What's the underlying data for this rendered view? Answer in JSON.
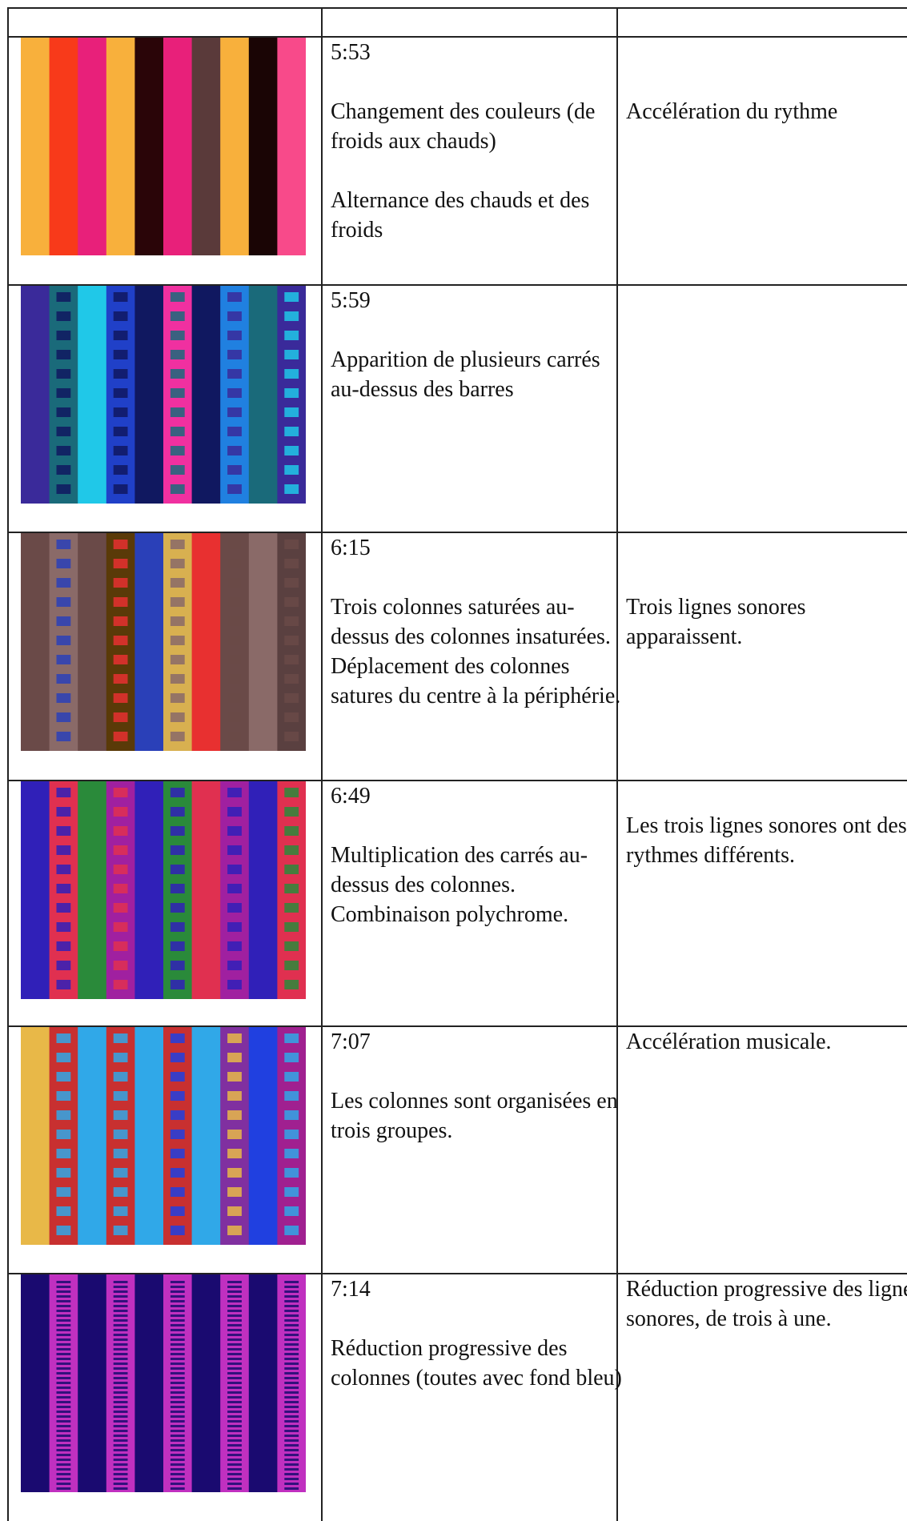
{
  "table": {
    "rows": [
      {
        "time": "5:53",
        "description": [
          "Changement des couleurs (de froids aux chauds)",
          "Alternance des chauds et des froids"
        ],
        "sound": "Accélération du rythme"
      },
      {
        "time": "5:59",
        "description": [
          "Apparition de plusieurs carrés au-dessus des barres"
        ]
      },
      {
        "time": "6:15",
        "description": [
          "Trois colonnes saturées au-dessus des colonnes insaturées. Déplacement des colonnes satures du centre à la périphérie."
        ],
        "sound": "Trois lignes sonores apparaissent."
      },
      {
        "time": "6:49",
        "description": [
          "Multiplication des carrés au-dessus des colonnes. Combinaison polychrome."
        ],
        "sound": "Les trois lignes sonores ont des rythmes différents."
      },
      {
        "time": "7:07",
        "description": [
          "Les colonnes sont organisées en trois groupes."
        ],
        "sound": "Accélération musicale."
      },
      {
        "time": "7:14",
        "description": [
          "Réduction progressive des colonnes (toutes avec fond bleu)"
        ],
        "sound": "Réduction progressive des lignes sonores, de trois à une."
      }
    ]
  }
}
